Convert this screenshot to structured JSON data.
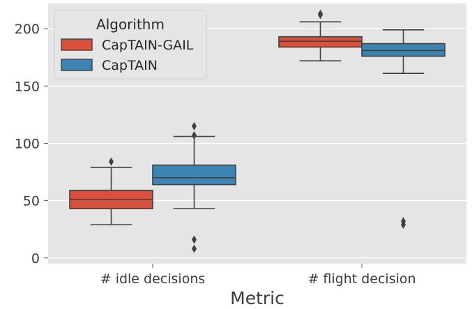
{
  "chart_data": {
    "type": "box",
    "xlabel": "Metric",
    "ylabel": "",
    "categories": [
      "# idle decisions",
      "# flight decision"
    ],
    "ylim": [
      -5,
      222
    ],
    "yticks": [
      0,
      50,
      100,
      150,
      200
    ],
    "grid": true,
    "legend": {
      "title": "Algorithm",
      "position": "top-left"
    },
    "series": [
      {
        "name": "CapTAIN-GAIL",
        "color": "#d9503c",
        "boxes": [
          {
            "whisker_low": 29,
            "q1": 43,
            "median": 51,
            "q3": 59,
            "whisker_high": 79,
            "outliers": [
              84
            ]
          },
          {
            "whisker_low": 172,
            "q1": 184,
            "median": 189,
            "q3": 193,
            "whisker_high": 206,
            "outliers": [
              212,
              213
            ]
          }
        ]
      },
      {
        "name": "CapTAIN",
        "color": "#3c84b4",
        "boxes": [
          {
            "whisker_low": 43,
            "q1": 64,
            "median": 70,
            "q3": 81,
            "whisker_high": 106,
            "outliers": [
              107,
              115,
              16,
              8
            ]
          },
          {
            "whisker_low": 161,
            "q1": 176,
            "median": 181,
            "q3": 187,
            "whisker_high": 199,
            "outliers": [
              32,
              29
            ]
          }
        ]
      }
    ]
  }
}
